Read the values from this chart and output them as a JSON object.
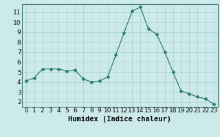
{
  "x": [
    0,
    1,
    2,
    3,
    4,
    5,
    6,
    7,
    8,
    9,
    10,
    11,
    12,
    13,
    14,
    15,
    16,
    17,
    18,
    19,
    20,
    21,
    22,
    23
  ],
  "y": [
    4.1,
    4.4,
    5.3,
    5.3,
    5.3,
    5.1,
    5.2,
    4.3,
    4.0,
    4.1,
    4.5,
    6.7,
    8.9,
    11.1,
    11.5,
    9.3,
    8.8,
    7.0,
    5.0,
    3.1,
    2.8,
    2.5,
    2.3,
    1.8
  ],
  "line_color": "#2e7d6e",
  "marker": "D",
  "marker_size": 2.5,
  "xlabel": "Humidex (Indice chaleur)",
  "ylim": [
    1.5,
    11.8
  ],
  "yticks": [
    2,
    3,
    4,
    5,
    6,
    7,
    8,
    9,
    10,
    11
  ],
  "xticks": [
    0,
    1,
    2,
    3,
    4,
    5,
    6,
    7,
    8,
    9,
    10,
    11,
    12,
    13,
    14,
    15,
    16,
    17,
    18,
    19,
    20,
    21,
    22,
    23
  ],
  "bg_color": "#cceaea",
  "grid_color": "#aacfcf",
  "xlabel_fontsize": 7.5,
  "tick_fontsize": 6.5,
  "fig_width": 3.2,
  "fig_height": 2.0,
  "dpi": 100
}
